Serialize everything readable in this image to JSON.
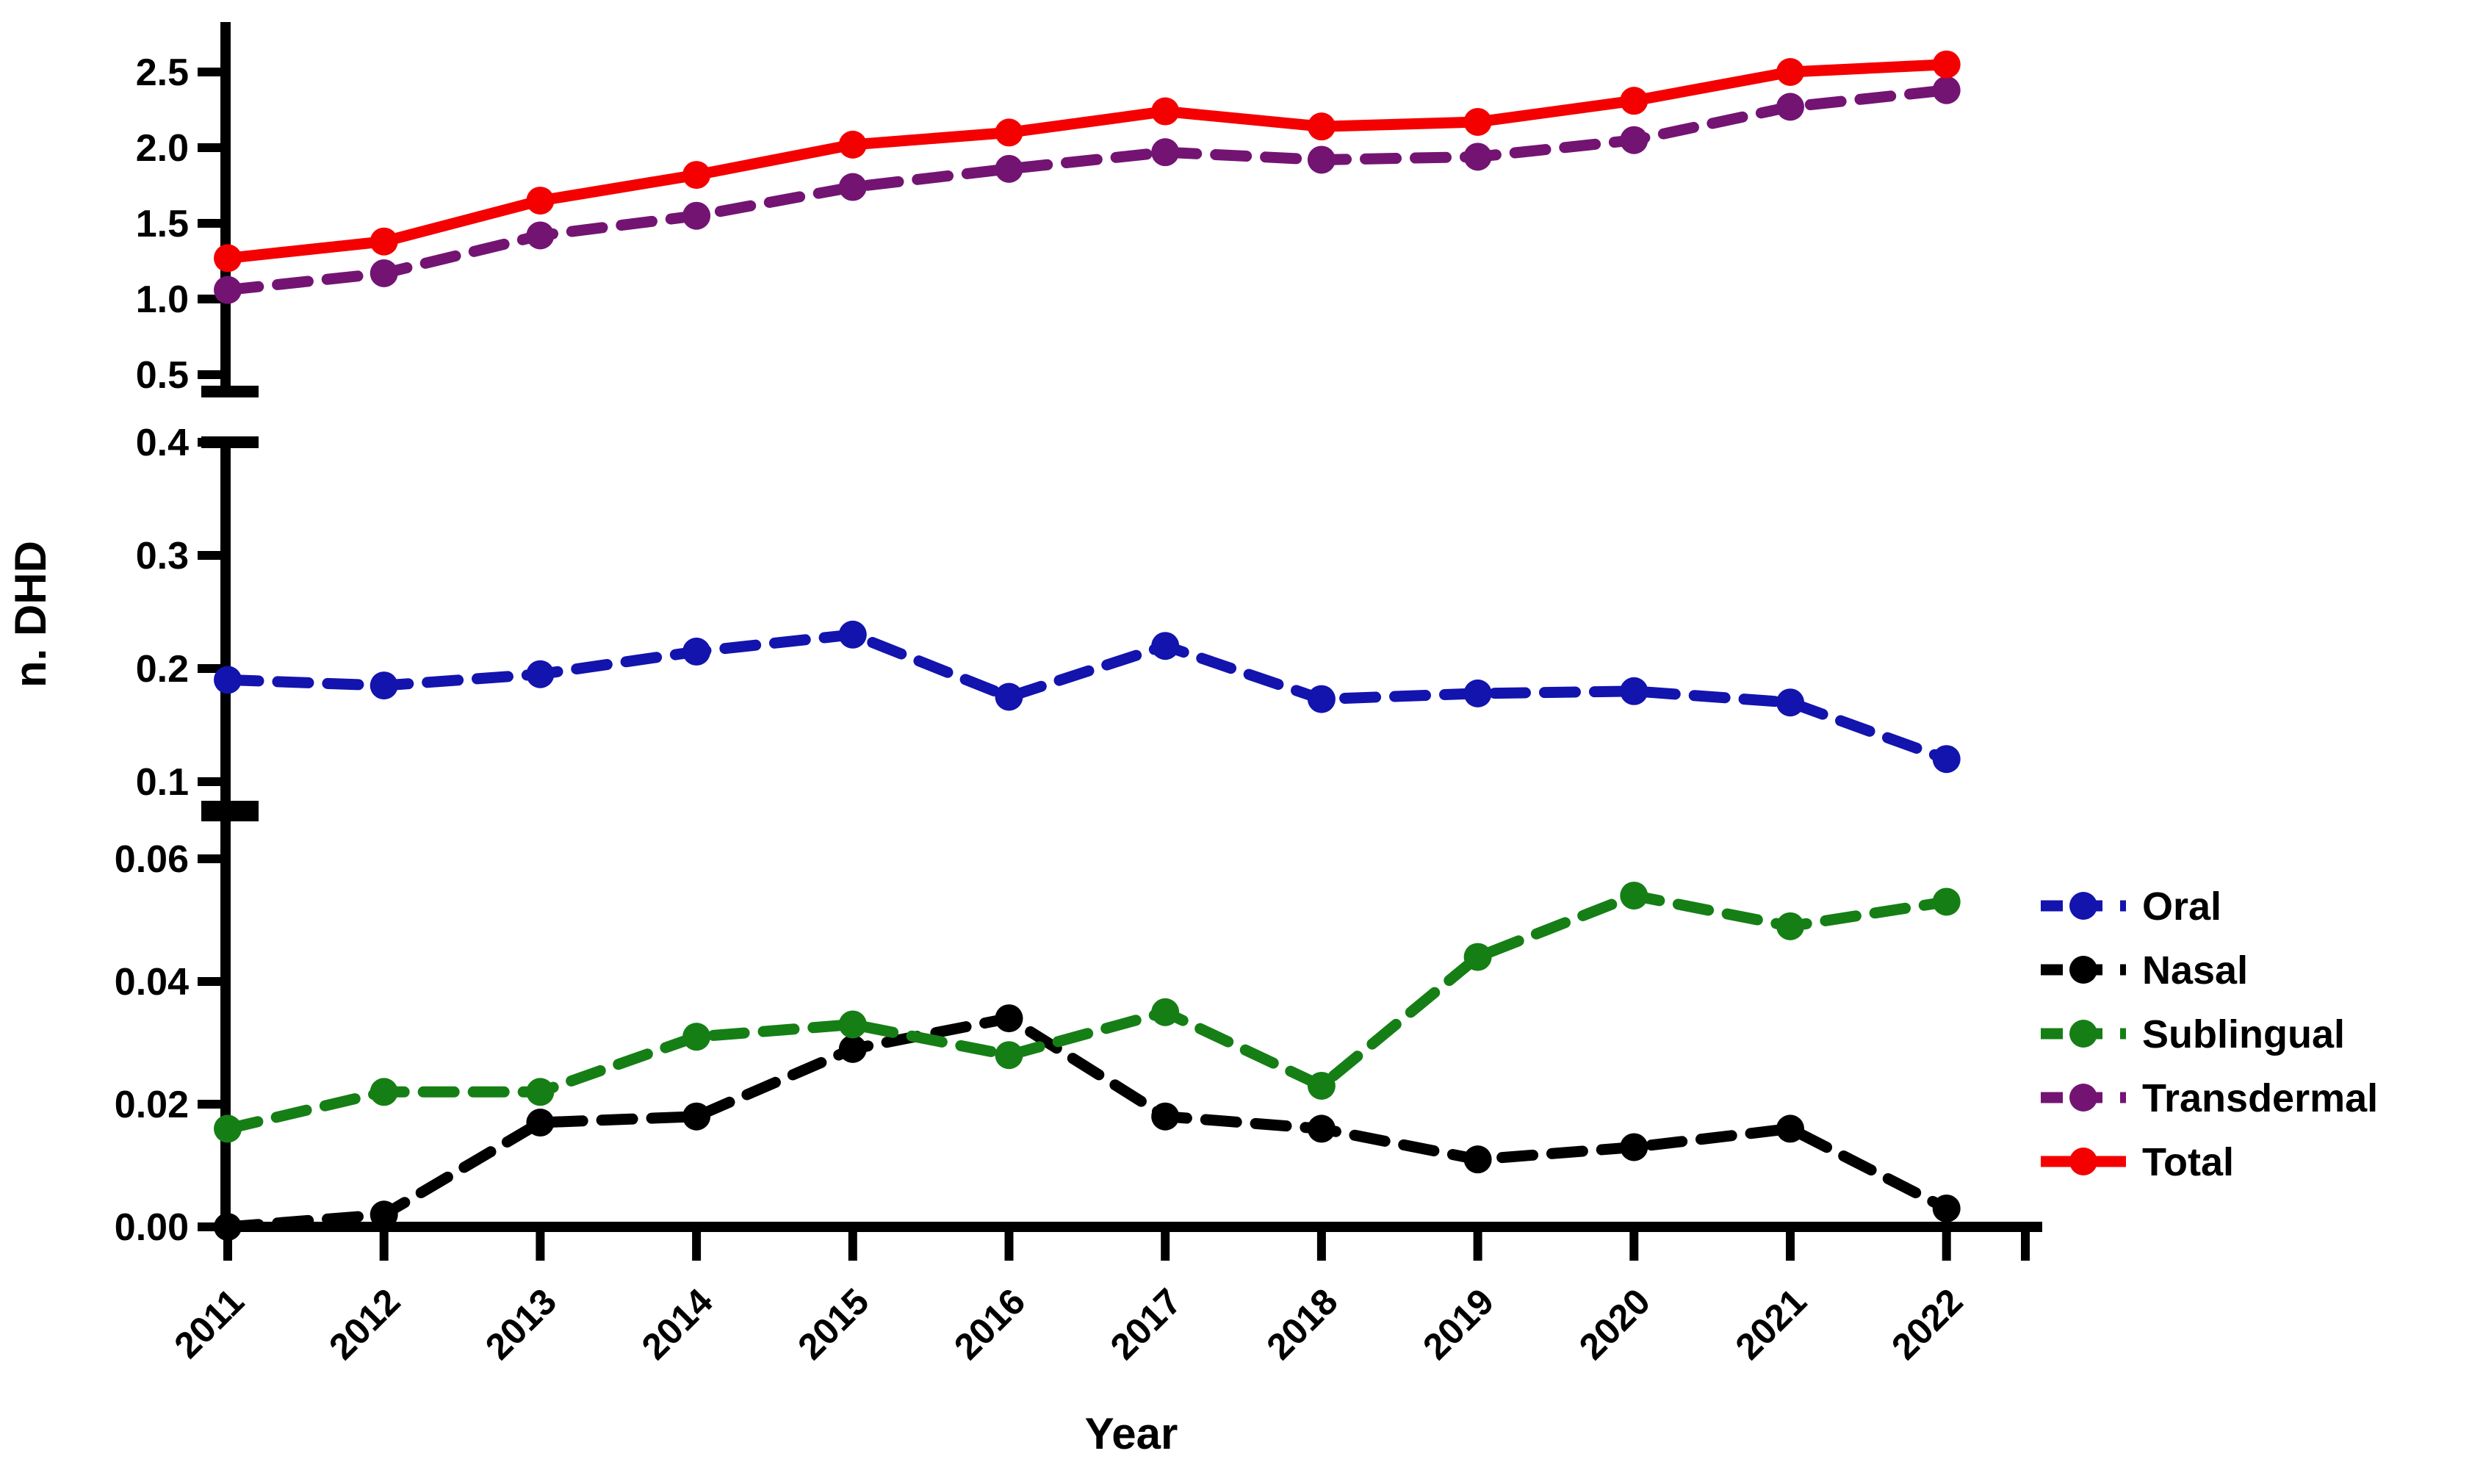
{
  "chart_data": {
    "type": "line",
    "title": "",
    "xlabel": "Year",
    "ylabel": "n. DHD",
    "grid": false,
    "legend_position": "right",
    "x_tick_labels": [
      "2011",
      "2012",
      "2013",
      "2014",
      "2015",
      "2016",
      "2017",
      "2018",
      "2019",
      "2020",
      "2021",
      "2022"
    ],
    "y_axis_panels": [
      {
        "name": "upper-panel",
        "tick_labels": [
          "2.5",
          "2.0",
          "1.5",
          "1.0",
          "0.5"
        ],
        "range": [
          0.4,
          2.8
        ]
      },
      {
        "name": "middle-panel",
        "tick_labels": [
          "0.4",
          "0.3",
          "0.2",
          "0.1"
        ],
        "range": [
          0.07,
          0.42
        ]
      },
      {
        "name": "lower-panel",
        "tick_labels": [
          "0.06",
          "0.04",
          "0.02",
          "0.00"
        ],
        "range": [
          0.0,
          0.066
        ]
      }
    ],
    "series": [
      {
        "name": "Oral",
        "color": "#1313ae",
        "line_style": "dashed",
        "marker": "circle",
        "axis_panel": 1,
        "values": [
          0.19,
          0.185,
          0.195,
          0.215,
          0.23,
          0.175,
          0.22,
          0.173,
          0.178,
          0.18,
          0.17,
          0.12
        ]
      },
      {
        "name": "Nasal",
        "color": "#000000",
        "line_style": "dashed",
        "marker": "circle",
        "axis_panel": 2,
        "values": [
          0.0,
          0.002,
          0.017,
          0.018,
          0.029,
          0.034,
          0.018,
          0.016,
          0.011,
          0.013,
          0.016,
          0.003
        ]
      },
      {
        "name": "Sublingual",
        "color": "#157f15",
        "line_style": "dashed",
        "marker": "circle",
        "axis_panel": 2,
        "values": [
          0.016,
          0.022,
          0.022,
          0.031,
          0.033,
          0.028,
          0.035,
          0.023,
          0.044,
          0.054,
          0.049,
          0.053
        ]
      },
      {
        "name": "Transdermal",
        "color": "#731473",
        "line_style": "dashed",
        "marker": "circle",
        "axis_panel": 0,
        "values": [
          1.06,
          1.17,
          1.42,
          1.55,
          1.74,
          1.86,
          1.97,
          1.92,
          1.94,
          2.05,
          2.27,
          2.38
        ]
      },
      {
        "name": "Total",
        "color": "#f50000",
        "line_style": "solid",
        "marker": "circle",
        "axis_panel": 0,
        "values": [
          1.27,
          1.38,
          1.65,
          1.82,
          2.02,
          2.1,
          2.24,
          2.14,
          2.17,
          2.31,
          2.5,
          2.55
        ]
      }
    ]
  }
}
